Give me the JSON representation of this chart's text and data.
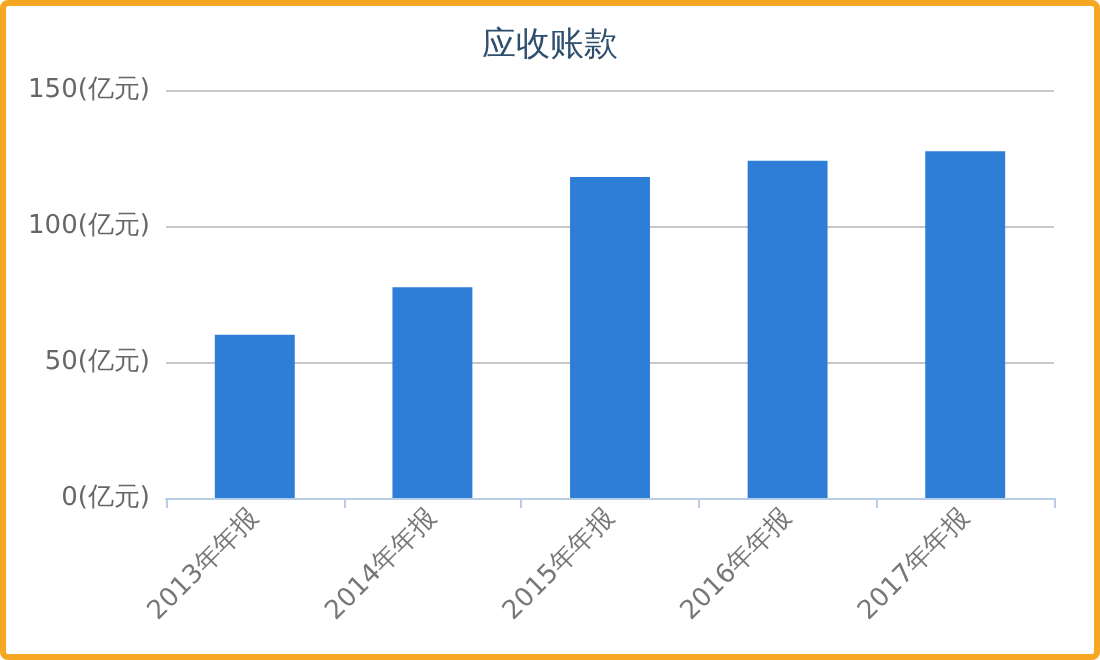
{
  "chart_data": {
    "type": "bar",
    "title": "应收账款",
    "categories": [
      "2013年年报",
      "2014年年报",
      "2015年年报",
      "2016年年报",
      "2017年年报"
    ],
    "values": [
      60,
      77.5,
      118,
      124,
      127.5
    ],
    "color": "#2e7dd7",
    "ylim": [
      0,
      150
    ],
    "yticks": [
      {
        "value": 0,
        "label": "0(亿元)"
      },
      {
        "value": 50,
        "label": "50(亿元)"
      },
      {
        "value": 100,
        "label": "100(亿元)"
      },
      {
        "value": 150,
        "label": "150(亿元)"
      }
    ],
    "grid": "y"
  }
}
